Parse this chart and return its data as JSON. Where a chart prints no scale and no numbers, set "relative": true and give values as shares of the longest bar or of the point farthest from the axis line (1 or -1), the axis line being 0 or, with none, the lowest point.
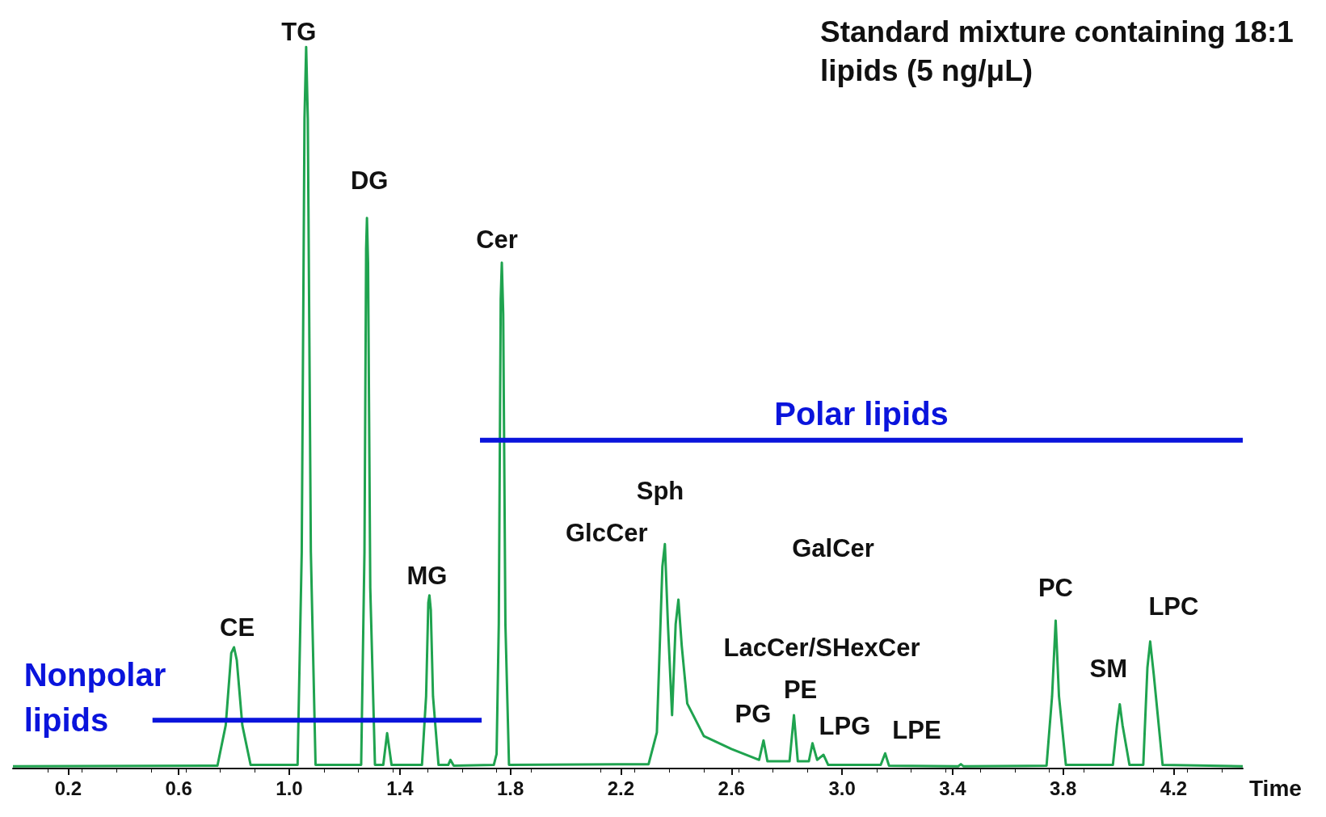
{
  "chart_data": {
    "type": "line",
    "relative": true,
    "title": "Standard mixture containing 18:1 lipids (5 ng/μL)",
    "xlabel": "Time",
    "xlim": [
      0.0,
      4.45
    ],
    "xticks": [
      0.2,
      0.6,
      {
        "value": 1,
        "label": "1.0"
      },
      1.4,
      1.8,
      2.2,
      2.6,
      {
        "value": 3,
        "label": "3.0"
      },
      3.4,
      3.8,
      4.2
    ],
    "grid": false,
    "legend": false,
    "marker": "none",
    "line_style": "solid",
    "series": [
      {
        "color": "#1fa34f",
        "x": [
          0.0,
          0.74,
          0.77,
          0.79,
          0.8,
          0.81,
          0.83,
          0.86,
          1.03,
          1.045,
          1.055,
          1.061,
          1.067,
          1.078,
          1.095,
          1.26,
          1.272,
          1.278,
          1.281,
          1.285,
          1.293,
          1.31,
          1.34,
          1.354,
          1.37,
          1.48,
          1.495,
          1.503,
          1.507,
          1.512,
          1.52,
          1.54,
          1.575,
          1.583,
          1.595,
          1.74,
          1.75,
          1.758,
          1.765,
          1.769,
          1.774,
          1.782,
          1.795,
          2.3,
          2.33,
          2.35,
          2.359,
          2.37,
          2.385,
          2.398,
          2.408,
          2.42,
          2.44,
          2.5,
          2.6,
          2.7,
          2.716,
          2.73,
          2.81,
          2.826,
          2.84,
          2.88,
          2.893,
          2.91,
          2.933,
          2.95,
          3.14,
          3.156,
          3.17,
          3.42,
          3.43,
          3.44,
          3.74,
          3.76,
          3.773,
          3.785,
          3.81,
          3.98,
          3.995,
          4.005,
          4.015,
          4.04,
          4.09,
          4.105,
          4.115,
          4.128,
          4.16,
          4.45
        ],
        "values": [
          0.003,
          0.004,
          0.06,
          0.16,
          0.168,
          0.15,
          0.06,
          0.005,
          0.005,
          0.3,
          0.9,
          1.0,
          0.9,
          0.3,
          0.005,
          0.005,
          0.3,
          0.72,
          0.763,
          0.7,
          0.25,
          0.005,
          0.005,
          0.049,
          0.005,
          0.005,
          0.1,
          0.23,
          0.24,
          0.22,
          0.1,
          0.005,
          0.005,
          0.012,
          0.004,
          0.005,
          0.02,
          0.2,
          0.65,
          0.701,
          0.63,
          0.2,
          0.005,
          0.006,
          0.05,
          0.28,
          0.311,
          0.2,
          0.074,
          0.2,
          0.234,
          0.17,
          0.09,
          0.045,
          0.027,
          0.012,
          0.039,
          0.01,
          0.01,
          0.074,
          0.01,
          0.01,
          0.035,
          0.012,
          0.019,
          0.005,
          0.005,
          0.021,
          0.004,
          0.003,
          0.006,
          0.003,
          0.004,
          0.1,
          0.205,
          0.1,
          0.005,
          0.005,
          0.06,
          0.089,
          0.06,
          0.005,
          0.005,
          0.14,
          0.176,
          0.13,
          0.005,
          0.003
        ]
      },
      {
        "name": "Nonpolar lipids",
        "color": "#0a14dc",
        "x": [
          0.505,
          1.696
        ],
        "values": [
          0.067,
          0.067
        ]
      },
      {
        "name": "Polar lipids",
        "color": "#0a14dc",
        "x": [
          1.69,
          4.45
        ],
        "values": [
          0.455,
          0.455
        ]
      }
    ],
    "annotations": [
      {
        "text": "CE",
        "x": 0.8,
        "y": 0.168
      },
      {
        "text": "TG",
        "x": 1.061,
        "y": 1.0
      },
      {
        "text": "DG",
        "x": 1.281,
        "y": 0.763
      },
      {
        "text": "MG",
        "x": 1.507,
        "y": 0.24
      },
      {
        "text": "Cer",
        "x": 1.769,
        "y": 0.701
      },
      {
        "text": "GlcCer",
        "x": 2.359,
        "y": 0.311
      },
      "Sph",
      "GalCer",
      "LacCer/SHexCer",
      {
        "text": "PG",
        "x": 2.716,
        "y": 0.039
      },
      {
        "text": "PE",
        "x": 2.826,
        "y": 0.074
      },
      {
        "text": "LPG",
        "x": 2.893,
        "y": 0.035
      },
      {
        "text": "LPE",
        "x": 3.156,
        "y": 0.021
      },
      {
        "text": "PC",
        "x": 3.773,
        "y": 0.205
      },
      {
        "text": "SM",
        "x": 4.005,
        "y": 0.089
      },
      {
        "text": "LPC",
        "x": 4.115,
        "y": 0.176
      }
    ]
  }
}
